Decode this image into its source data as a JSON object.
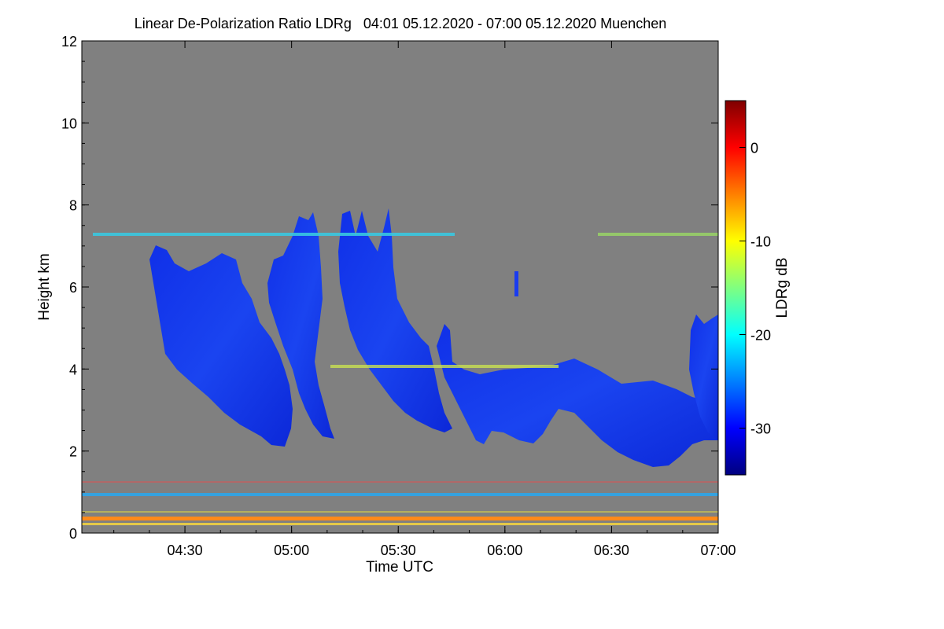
{
  "chart_data": {
    "type": "heatmap",
    "title": "Linear De-Polarization Ratio LDRg   04:01 05.12.2020 - 07:00 05.12.2020 Muenchen",
    "xlabel": "Time UTC",
    "ylabel": "Height km",
    "x_ticks": [
      "04:30",
      "05:00",
      "05:30",
      "06:00",
      "06:30",
      "07:00"
    ],
    "y_ticks": [
      "0",
      "2",
      "4",
      "6",
      "8",
      "10",
      "12"
    ],
    "colorbar": {
      "label": "LDRg dB",
      "ticks": [
        "0",
        "-10",
        "-20",
        "-30"
      ],
      "range": [
        -35,
        5
      ],
      "colormap": "jet"
    },
    "xlim": [
      "04:01",
      "07:00"
    ],
    "ylim": [
      0,
      12
    ],
    "background_color": "#808080",
    "features": [
      {
        "name": "cloud-fall-streaks",
        "height_km": [
          1.6,
          7.9
        ],
        "ldr_db": -33
      },
      {
        "name": "layer-7.3km",
        "height_km": 7.3,
        "ldr_db": -18
      },
      {
        "name": "layer-4km",
        "height_km": 4.0,
        "ldr_db": -12
      },
      {
        "name": "aerosol-layer-1km",
        "height_km": 0.95,
        "ldr_db": -22
      },
      {
        "name": "near-ground-layer",
        "height_km": 0.3,
        "ldr_db": -3
      }
    ]
  }
}
